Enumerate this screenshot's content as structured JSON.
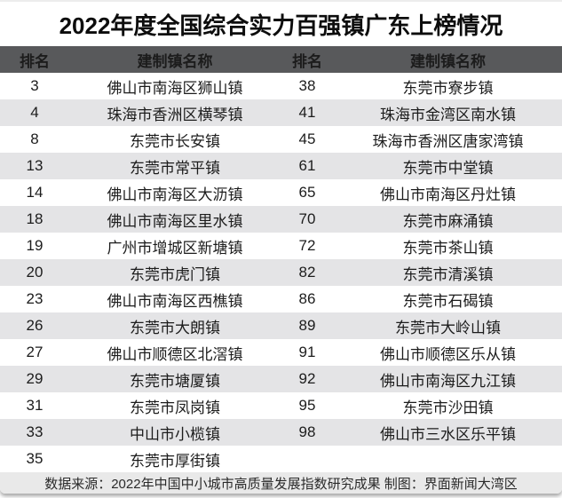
{
  "title": "2022年度全国综合实力百强镇广东上榜情况",
  "colors": {
    "header_bg": "#58595b",
    "stripe_bg": "#e4e4e6",
    "footer_bg": "#e9e9e9",
    "title_color": "#0d0d0d"
  },
  "footer": {
    "source_note": "数据来源：2022年中国中小城市高质量发展指数研究成果 制图：界面新闻大湾区"
  },
  "chart_data": {
    "type": "table",
    "title": "2022年度全国综合实力百强镇广东上榜情况",
    "columns": [
      "排名",
      "建制镇名称",
      "排名",
      "建制镇名称"
    ],
    "rows": [
      [
        "3",
        "佛山市南海区狮山镇",
        "38",
        "东莞市寮步镇"
      ],
      [
        "4",
        "珠海市香洲区横琴镇",
        "41",
        "珠海市金湾区南水镇"
      ],
      [
        "8",
        "东莞市长安镇",
        "45",
        "珠海市香洲区唐家湾镇"
      ],
      [
        "13",
        "东莞市常平镇",
        "61",
        "东莞市中堂镇"
      ],
      [
        "14",
        "佛山市南海区大沥镇",
        "65",
        "佛山市南海区丹灶镇"
      ],
      [
        "18",
        "佛山市南海区里水镇",
        "70",
        "东莞市麻涌镇"
      ],
      [
        "19",
        "广州市增城区新塘镇",
        "72",
        "东莞市茶山镇"
      ],
      [
        "20",
        "东莞市虎门镇",
        "82",
        "东莞市清溪镇"
      ],
      [
        "23",
        "佛山市南海区西樵镇",
        "86",
        "东莞市石碣镇"
      ],
      [
        "26",
        "东莞市大朗镇",
        "89",
        "东莞市大岭山镇"
      ],
      [
        "27",
        "佛山市顺德区北滘镇",
        "91",
        "佛山市顺德区乐从镇"
      ],
      [
        "29",
        "东莞市塘厦镇",
        "92",
        "佛山市南海区九江镇"
      ],
      [
        "31",
        "东莞市凤岗镇",
        "95",
        "东莞市沙田镇"
      ],
      [
        "33",
        "中山市小榄镇",
        "98",
        "佛山市三水区乐平镇"
      ],
      [
        "35",
        "东莞市厚街镇",
        "",
        ""
      ]
    ],
    "source_note": "数据来源：2022年中国中小城市高质量发展指数研究成果 制图：界面新闻大湾区",
    "layout": {
      "stripes": "alternating white / light gray",
      "header_style": "dark gray bar, white bold text",
      "two_column_pairs": true
    }
  }
}
